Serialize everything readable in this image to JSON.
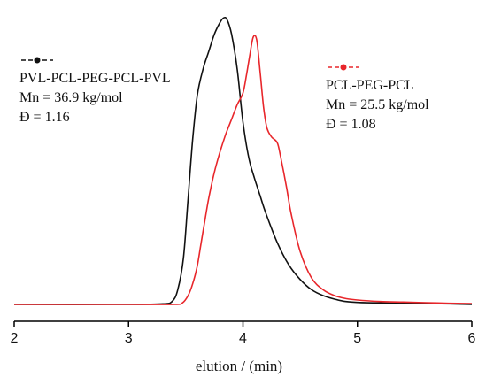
{
  "chart_data": {
    "type": "line",
    "xlabel": "elution / (min)",
    "ylabel": "",
    "xlim": [
      2,
      6
    ],
    "ylim": [
      0,
      1.0
    ],
    "x_ticks": [
      "2",
      "3",
      "4",
      "5",
      "6"
    ],
    "grid": false,
    "legend_placement": "top-left and top-right",
    "series": [
      {
        "name": "PVL-PCL-PEG-PCL-PVL",
        "color": "#111111",
        "annotations": [
          "Mn = 36.9 kg/mol",
          "Đ = 1.16"
        ],
        "x": [
          2.0,
          3.0,
          3.3,
          3.38,
          3.43,
          3.48,
          3.52,
          3.56,
          3.6,
          3.65,
          3.7,
          3.75,
          3.8,
          3.83,
          3.86,
          3.9,
          3.95,
          4.0,
          4.05,
          4.1,
          4.15,
          4.2,
          4.3,
          4.4,
          4.5,
          4.6,
          4.7,
          4.8,
          4.9,
          5.0,
          5.2,
          5.4,
          5.6,
          5.8,
          6.0
        ],
        "y": [
          0.0,
          0.0,
          0.002,
          0.01,
          0.05,
          0.16,
          0.36,
          0.56,
          0.71,
          0.8,
          0.86,
          0.92,
          0.96,
          0.975,
          0.97,
          0.92,
          0.8,
          0.62,
          0.5,
          0.43,
          0.37,
          0.31,
          0.21,
          0.135,
          0.085,
          0.05,
          0.03,
          0.018,
          0.01,
          0.007,
          0.005,
          0.004,
          0.003,
          0.002,
          0.0
        ]
      },
      {
        "name": "PCL-PEG-PCL",
        "color": "#e8262b",
        "annotations": [
          "Mn = 25.5 kg/mol",
          "Đ = 1.08"
        ],
        "x": [
          2.0,
          3.0,
          3.4,
          3.47,
          3.52,
          3.56,
          3.6,
          3.63,
          3.66,
          3.7,
          3.75,
          3.8,
          3.85,
          3.9,
          3.95,
          4.0,
          4.03,
          4.06,
          4.09,
          4.12,
          4.15,
          4.18,
          4.21,
          4.25,
          4.3,
          4.33,
          4.38,
          4.42,
          4.5,
          4.6,
          4.7,
          4.8,
          4.9,
          5.0,
          5.2,
          5.4,
          5.6,
          5.8,
          6.0
        ],
        "y": [
          0.0,
          0.0,
          0.0,
          0.005,
          0.03,
          0.07,
          0.13,
          0.2,
          0.27,
          0.36,
          0.45,
          0.52,
          0.58,
          0.63,
          0.68,
          0.72,
          0.78,
          0.85,
          0.91,
          0.9,
          0.79,
          0.67,
          0.6,
          0.57,
          0.55,
          0.5,
          0.4,
          0.31,
          0.18,
          0.09,
          0.05,
          0.03,
          0.02,
          0.015,
          0.01,
          0.008,
          0.006,
          0.004,
          0.003
        ]
      }
    ]
  }
}
